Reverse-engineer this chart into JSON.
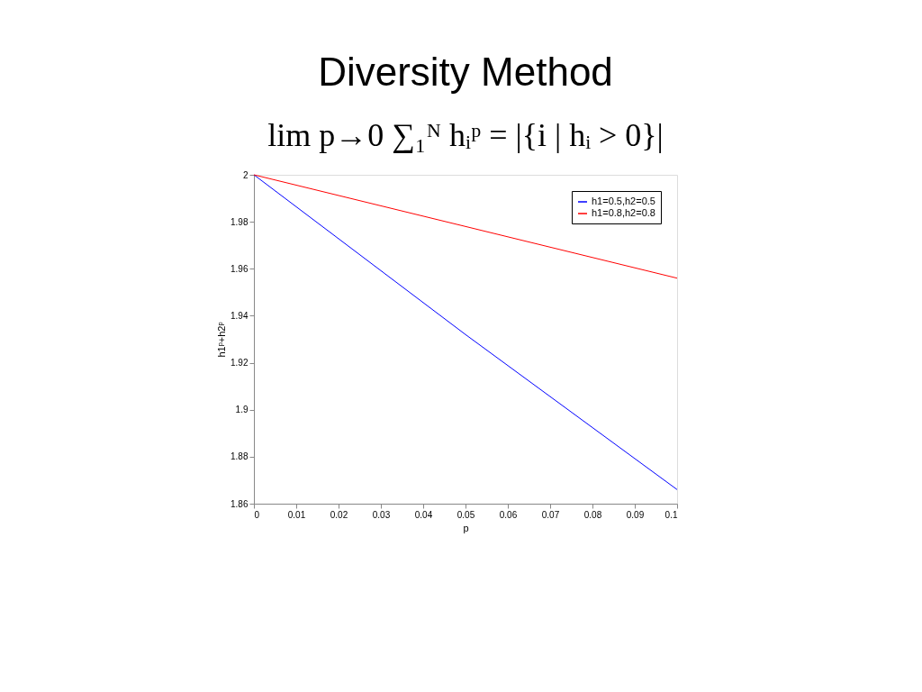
{
  "chart_data": {
    "type": "line",
    "title": "Diversity Method",
    "subtitle": "lim p→0 ∑₁ᴺ hᵢᵖ = |{i | hᵢ > 0}|",
    "xlabel": "p",
    "ylabel": "h1ᵖ+h2ᵖ",
    "x": [
      0,
      0.05,
      0.1
    ],
    "series": [
      {
        "name": "h1=0.5,h2=0.5",
        "color": "#0000ff",
        "values": [
          2,
          1.932,
          1.866
        ]
      },
      {
        "name": "h1=0.8,h2=0.8",
        "color": "#ff0000",
        "values": [
          2,
          1.978,
          1.956
        ]
      }
    ],
    "xlim": [
      0,
      0.1
    ],
    "xticks": [
      0,
      0.01,
      0.02,
      0.03,
      0.04,
      0.05,
      0.06,
      0.07,
      0.08,
      0.09,
      0.1
    ],
    "ylim": [
      1.86,
      2
    ],
    "yticks": [
      1.86,
      1.88,
      1.9,
      1.92,
      1.94,
      1.96,
      1.98,
      2
    ],
    "grid": false,
    "legend": "top right",
    "marker": "none",
    "line_style": "solid"
  }
}
